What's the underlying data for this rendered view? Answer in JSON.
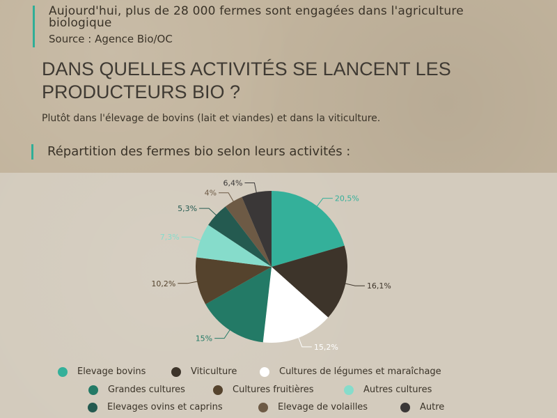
{
  "header": {
    "headline": "Aujourd'hui, plus de 28 000 fermes sont engagées dans l'agriculture biologique",
    "source": "Source : Agence Bio/OC"
  },
  "question": "DANS QUELLES ACTIVITÉS SE LANCENT LES PRODUCTEURS BIO ?",
  "answer": "Plutôt dans l'élevage de bovins (lait et viandes) et dans la viticulture.",
  "subhead": "Répartition des fermes bio selon leurs activités :",
  "colors": {
    "accent": "#2fae97"
  },
  "chart_data": {
    "type": "pie",
    "title": "",
    "slices": [
      {
        "name": "Elevage bovins",
        "value": 20.5,
        "label": "20,5%",
        "color": "#34b09a"
      },
      {
        "name": "Viticulture",
        "value": 16.1,
        "label": "16,1%",
        "color": "#3d342a"
      },
      {
        "name": "Cultures de légumes et maraîchage",
        "value": 15.2,
        "label": "15,2%",
        "color": "#ffffff"
      },
      {
        "name": "Grandes cultures",
        "value": 15,
        "label": "15%",
        "color": "#237a66"
      },
      {
        "name": "Cultures fruitières",
        "value": 10.2,
        "label": "10,2%",
        "color": "#55432d"
      },
      {
        "name": "Autres cultures",
        "value": 7.3,
        "label": "7,3%",
        "color": "#86dccb"
      },
      {
        "name": "Elevages ovins et caprins",
        "value": 5.3,
        "label": "5,3%",
        "color": "#245a50"
      },
      {
        "name": "Elevage de volailles",
        "value": 4,
        "label": "4%",
        "color": "#6d5a45"
      },
      {
        "name": "Autre",
        "value": 6.4,
        "label": "6,4%",
        "color": "#3a3737"
      }
    ],
    "legend_position": "bottom"
  }
}
